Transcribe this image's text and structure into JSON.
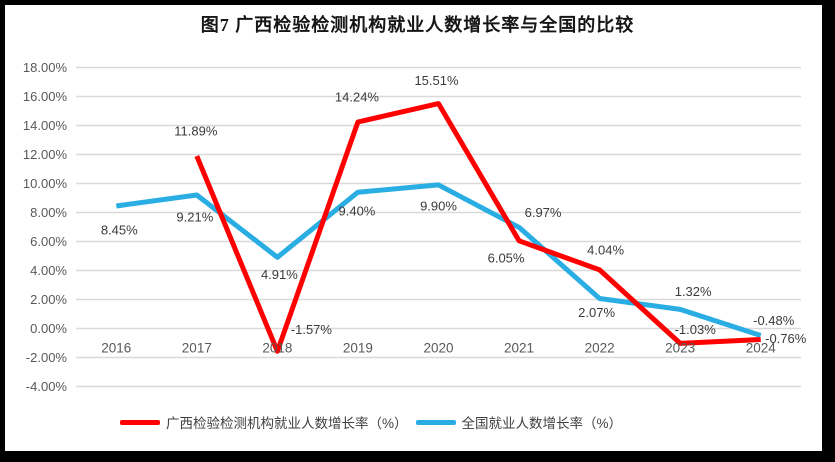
{
  "chart": {
    "title": "图7 广西检验检测机构就业人数增长率与全国的比较"
  },
  "chart_data": {
    "type": "line",
    "title": "图7 广西检验检测机构就业人数增长率与全国的比较",
    "categories": [
      "2016",
      "2017",
      "2018",
      "2019",
      "2020",
      "2021",
      "2022",
      "2023",
      "2024"
    ],
    "series": [
      {
        "name": "广西检验检测机构就业人数增长率（%）",
        "color": "#FE0000",
        "values": [
          null,
          11.89,
          -1.57,
          14.24,
          15.51,
          6.05,
          4.04,
          -1.03,
          -0.76
        ],
        "labels": [
          "",
          "11.89%",
          "-1.57%",
          "14.24%",
          "15.51%",
          "6.05%",
          "4.04%",
          "-1.03%",
          "-0.76%"
        ]
      },
      {
        "name": "全国就业人数增长率（%）",
        "color": "#29ADE3",
        "values": [
          8.45,
          9.21,
          4.91,
          9.4,
          9.9,
          6.97,
          2.07,
          1.32,
          -0.48
        ],
        "labels": [
          "8.45%",
          "9.21%",
          "4.91%",
          "9.40%",
          "9.90%",
          "6.97%",
          "2.07%",
          "1.32%",
          "-0.48%"
        ]
      }
    ],
    "ylim": [
      -4,
      18
    ],
    "ytick_step": 2,
    "ytick_labels": [
      "18.00%",
      "16.00%",
      "14.00%",
      "12.00%",
      "10.00%",
      "8.00%",
      "6.00%",
      "4.00%",
      "2.00%",
      "0.00%",
      "-2.00%",
      "-4.00%"
    ],
    "grid": true,
    "legend_position": "bottom",
    "colors": {
      "gridline": "#D9D9D9",
      "tick_text": "#595959",
      "data_label_text": "#3b3b3b",
      "frame": "#000000"
    }
  }
}
